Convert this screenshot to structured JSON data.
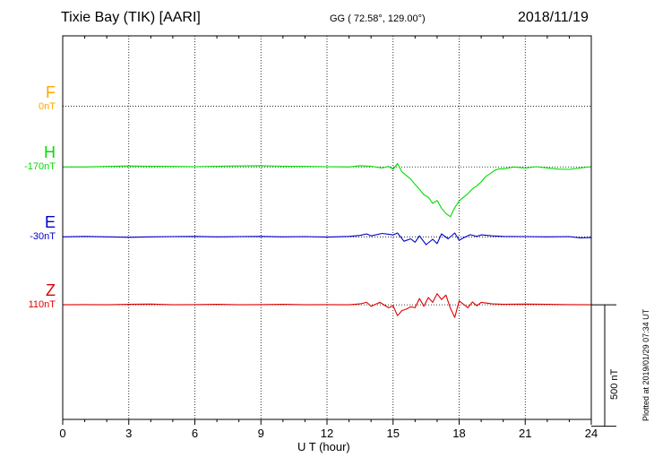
{
  "header": {
    "station": "Tixie Bay (TIK)  [AARI]",
    "coords": "GG ( 72.58°, 129.00°)",
    "date": "2018/11/19"
  },
  "side_note": "Plotted at 2019/01/29 07:34 UT",
  "chart_data": {
    "type": "line",
    "xlabel": "U T (hour)",
    "x_ticks": [
      "0",
      "3",
      "6",
      "9",
      "12",
      "15",
      "18",
      "21",
      "24"
    ],
    "xlim": [
      0,
      24
    ],
    "grid": true,
    "scale_bar_label": "500 nT",
    "scale_bar_nT": 500,
    "ylim_nT": [
      -790,
      790
    ],
    "series": [
      {
        "name": "F",
        "offset_label": "0nT",
        "color": "#ffa500",
        "baseline_nT": 500,
        "x": [],
        "values": []
      },
      {
        "name": "H",
        "offset_label": "-170nT",
        "color": "#00dd00",
        "baseline_nT": 250,
        "x": [
          0,
          1,
          2,
          3,
          4,
          5,
          6,
          7,
          8,
          9,
          10,
          11,
          12,
          13,
          13.5,
          14,
          14.5,
          14.8,
          15,
          15.2,
          15.4,
          15.6,
          15.8,
          16,
          16.2,
          16.4,
          16.6,
          16.8,
          17,
          17.2,
          17.4,
          17.6,
          17.8,
          18,
          18.2,
          18.4,
          18.6,
          18.8,
          19,
          19.2,
          19.4,
          19.6,
          19.8,
          20,
          20.5,
          21,
          21.5,
          22,
          22.5,
          23,
          23.5,
          24
        ],
        "values": [
          0,
          0,
          2,
          4,
          3,
          2,
          1,
          3,
          4,
          5,
          3,
          2,
          1,
          0,
          5,
          3,
          -4,
          2,
          -10,
          14,
          -20,
          -35,
          -50,
          -72,
          -92,
          -115,
          -125,
          -150,
          -138,
          -170,
          -192,
          -205,
          -168,
          -140,
          -125,
          -110,
          -90,
          -78,
          -62,
          -40,
          -28,
          -15,
          -8,
          -8,
          0,
          -5,
          1,
          -4,
          -9,
          -10,
          -4,
          1
        ]
      },
      {
        "name": "E",
        "offset_label": "-30nT",
        "color": "#0000cc",
        "baseline_nT": -38,
        "x": [
          0,
          1,
          2,
          3,
          4,
          5,
          6,
          7,
          8,
          9,
          10,
          11,
          12,
          13,
          13.5,
          13.8,
          14,
          14.5,
          15,
          15.2,
          15.5,
          15.8,
          16,
          16.2,
          16.5,
          16.8,
          17,
          17.2,
          17.5,
          17.8,
          18,
          18.2,
          18.5,
          18.8,
          19,
          19.5,
          20,
          21,
          22,
          23,
          23.5,
          24
        ],
        "values": [
          0,
          2,
          0,
          -2,
          0,
          1,
          2,
          0,
          1,
          2,
          0,
          1,
          -1,
          2,
          6,
          12,
          4,
          14,
          8,
          16,
          -18,
          -8,
          -22,
          4,
          -32,
          -10,
          -28,
          12,
          -8,
          16,
          -14,
          -4,
          9,
          2,
          8,
          4,
          2,
          1,
          0,
          1,
          -4,
          -3
        ]
      },
      {
        "name": "Z",
        "offset_label": "110nT",
        "color": "#dd0000",
        "baseline_nT": -318,
        "x": [
          0,
          1,
          2,
          3,
          4,
          5,
          6,
          7,
          8,
          9,
          10,
          11,
          12,
          13,
          13.5,
          13.8,
          14,
          14.4,
          14.8,
          15,
          15.2,
          15.4,
          15.6,
          15.8,
          16,
          16.2,
          16.4,
          16.6,
          16.8,
          17,
          17.2,
          17.4,
          17.6,
          17.8,
          18,
          18.2,
          18.4,
          18.6,
          18.8,
          19,
          19.5,
          20,
          21,
          22,
          23,
          24
        ],
        "values": [
          0,
          1,
          0,
          2,
          3,
          0,
          1,
          2,
          0,
          1,
          2,
          0,
          1,
          0,
          4,
          10,
          -6,
          10,
          -12,
          -4,
          -45,
          -24,
          -18,
          -8,
          -12,
          26,
          -6,
          30,
          10,
          46,
          22,
          40,
          -14,
          -52,
          16,
          2,
          -12,
          12,
          -4,
          10,
          4,
          2,
          3,
          2,
          1,
          0
        ]
      }
    ]
  }
}
